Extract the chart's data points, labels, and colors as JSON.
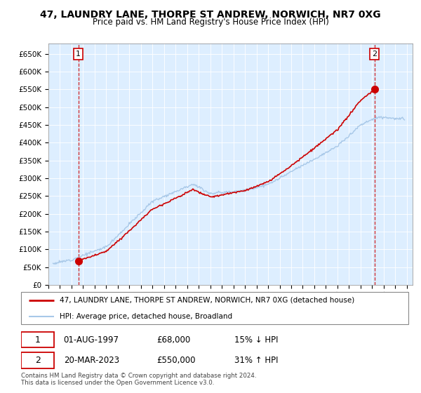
{
  "title": "47, LAUNDRY LANE, THORPE ST ANDREW, NORWICH, NR7 0XG",
  "subtitle": "Price paid vs. HM Land Registry's House Price Index (HPI)",
  "legend_line1": "47, LAUNDRY LANE, THORPE ST ANDREW, NORWICH, NR7 0XG (detached house)",
  "legend_line2": "HPI: Average price, detached house, Broadland",
  "transaction1_date": "01-AUG-1997",
  "transaction1_price": "£68,000",
  "transaction1_hpi": "15% ↓ HPI",
  "transaction2_date": "20-MAR-2023",
  "transaction2_price": "£550,000",
  "transaction2_hpi": "31% ↑ HPI",
  "footer": "Contains HM Land Registry data © Crown copyright and database right 2024.\nThis data is licensed under the Open Government Licence v3.0.",
  "hpi_line_color": "#a8c8e8",
  "price_line_color": "#cc0000",
  "marker_color": "#cc0000",
  "dashed_line_color": "#cc0000",
  "plot_bg_color": "#ddeeff",
  "ylim": [
    0,
    680000
  ],
  "yticks": [
    0,
    50000,
    100000,
    150000,
    200000,
    250000,
    300000,
    350000,
    400000,
    450000,
    500000,
    550000,
    600000,
    650000
  ],
  "xlim_start": 1995.3,
  "xlim_end": 2026.5,
  "transaction1_x": 1997.58,
  "transaction1_y": 68000,
  "transaction2_x": 2023.21,
  "transaction2_y": 550000
}
